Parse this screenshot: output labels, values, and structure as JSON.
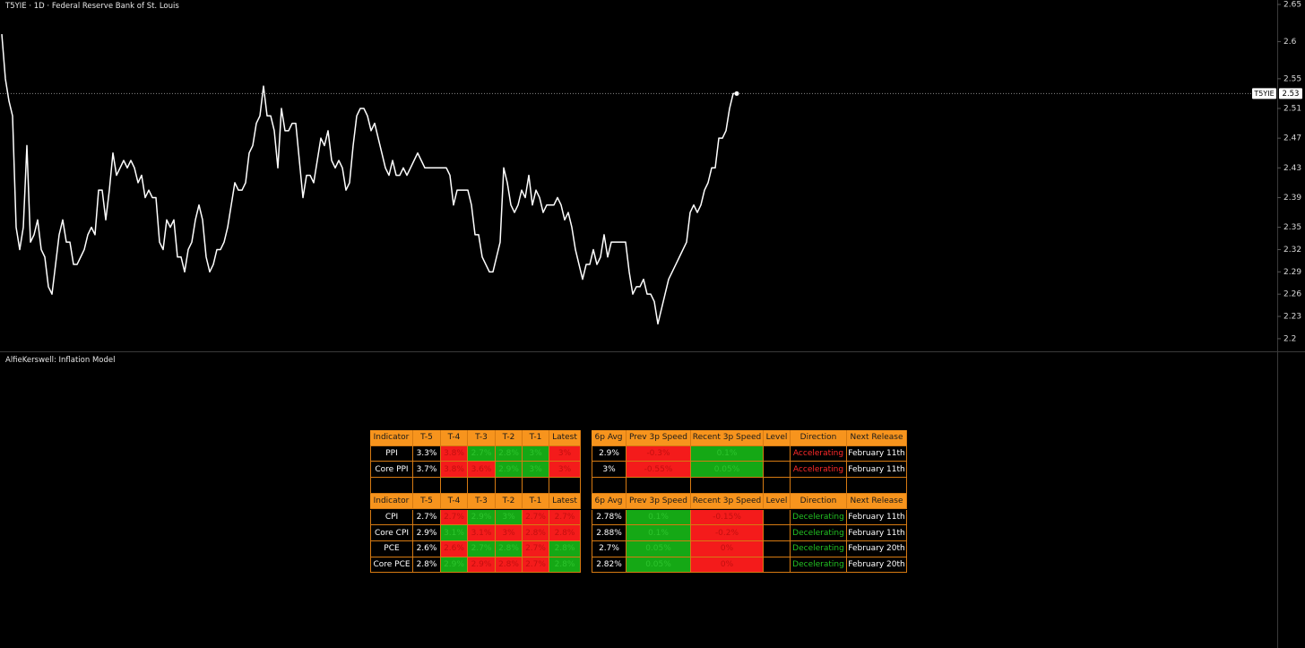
{
  "chart_data": {
    "type": "line",
    "title": "T5YIE · 1D · Federal Reserve Bank of St. Louis",
    "series": [
      {
        "name": "T5YIE",
        "color": "#ffffff",
        "values": [
          2.61,
          2.55,
          2.52,
          2.5,
          2.35,
          2.32,
          2.35,
          2.46,
          2.33,
          2.34,
          2.36,
          2.32,
          2.31,
          2.27,
          2.26,
          2.3,
          2.34,
          2.36,
          2.33,
          2.33,
          2.3,
          2.3,
          2.31,
          2.32,
          2.34,
          2.35,
          2.34,
          2.4,
          2.4,
          2.36,
          2.4,
          2.45,
          2.42,
          2.43,
          2.44,
          2.43,
          2.44,
          2.43,
          2.41,
          2.42,
          2.39,
          2.4,
          2.39,
          2.39,
          2.33,
          2.32,
          2.36,
          2.35,
          2.36,
          2.31,
          2.31,
          2.29,
          2.32,
          2.33,
          2.36,
          2.38,
          2.36,
          2.31,
          2.29,
          2.3,
          2.32,
          2.32,
          2.33,
          2.35,
          2.38,
          2.41,
          2.4,
          2.4,
          2.41,
          2.45,
          2.46,
          2.49,
          2.5,
          2.54,
          2.5,
          2.5,
          2.48,
          2.43,
          2.51,
          2.48,
          2.48,
          2.49,
          2.49,
          2.44,
          2.39,
          2.42,
          2.42,
          2.41,
          2.44,
          2.47,
          2.46,
          2.48,
          2.44,
          2.43,
          2.44,
          2.43,
          2.4,
          2.41,
          2.46,
          2.5,
          2.51,
          2.51,
          2.5,
          2.48,
          2.49,
          2.47,
          2.45,
          2.43,
          2.42,
          2.44,
          2.42,
          2.42,
          2.43,
          2.42,
          2.43,
          2.44,
          2.45,
          2.44,
          2.43,
          2.43,
          2.43,
          2.43,
          2.43,
          2.43,
          2.43,
          2.42,
          2.38,
          2.4,
          2.4,
          2.4,
          2.4,
          2.38,
          2.34,
          2.34,
          2.31,
          2.3,
          2.29,
          2.29,
          2.31,
          2.33,
          2.43,
          2.41,
          2.38,
          2.37,
          2.38,
          2.4,
          2.39,
          2.42,
          2.38,
          2.4,
          2.39,
          2.37,
          2.38,
          2.38,
          2.38,
          2.39,
          2.38,
          2.36,
          2.37,
          2.35,
          2.32,
          2.3,
          2.28,
          2.3,
          2.3,
          2.32,
          2.3,
          2.31,
          2.34,
          2.31,
          2.33,
          2.33,
          2.33,
          2.33,
          2.33,
          2.29,
          2.26,
          2.27,
          2.27,
          2.28,
          2.26,
          2.26,
          2.25,
          2.22,
          2.24,
          2.26,
          2.28,
          2.29,
          2.3,
          2.31,
          2.32,
          2.33,
          2.37,
          2.38,
          2.37,
          2.38,
          2.4,
          2.41,
          2.43,
          2.43,
          2.47,
          2.47,
          2.48,
          2.51,
          2.53,
          2.53
        ]
      }
    ],
    "ylim": [
      2.183,
      2.656
    ],
    "yticks": [
      2.65,
      2.6,
      2.55,
      2.51,
      2.47,
      2.43,
      2.39,
      2.35,
      2.32,
      2.29,
      2.26,
      2.23,
      2.2
    ]
  },
  "indicator": {
    "title": "AlfieKerswell: Inflation Model",
    "tables": [
      {
        "header": [
          "Indicator",
          "T-5",
          "T-4",
          "T-3",
          "T-2",
          "T-1",
          "Latest",
          "6p Avg",
          "Prev 3p Speed",
          "Recent 3p Speed",
          "Level",
          "Direction",
          "Next Release"
        ],
        "rows": [
          {
            "cells": [
              "PPI",
              "3.3%",
              "3.8%",
              "2.7%",
              "2.8%",
              "3%",
              "3%",
              "2.9%",
              "-0.3%",
              "0.1%",
              null,
              "Accelerating",
              "February 11th"
            ],
            "fills": [
              null,
              null,
              "red",
              "green",
              "green",
              "green",
              "red",
              null,
              "red",
              "green",
              null,
              null,
              null
            ],
            "direction_color": "red"
          },
          {
            "cells": [
              "Core PPI",
              "3.7%",
              "3.8%",
              "3.6%",
              "2.9%",
              "3%",
              "3%",
              "3%",
              "-0.55%",
              "0.05%",
              null,
              "Accelerating",
              "February 11th"
            ],
            "fills": [
              null,
              null,
              "red",
              "red",
              "green",
              "green",
              "red",
              null,
              "red",
              "green",
              null,
              null,
              null
            ],
            "direction_color": "red"
          }
        ]
      },
      {
        "header": [
          "Indicator",
          "T-5",
          "T-4",
          "T-3",
          "T-2",
          "T-1",
          "Latest",
          "6p Avg",
          "Prev 3p Speed",
          "Recent 3p Speed",
          "Level",
          "Direction",
          "Next Release"
        ],
        "rows": [
          {
            "cells": [
              "CPI",
              "2.7%",
              "2.7%",
              "2.9%",
              "3%",
              "2.7%",
              "2.7%",
              "2.78%",
              "0.1%",
              "-0.15%",
              null,
              "Decelerating",
              "February 11th"
            ],
            "fills": [
              null,
              null,
              "red",
              "green",
              "green",
              "red",
              "red",
              null,
              "green",
              "red",
              null,
              null,
              null
            ],
            "direction_color": "green"
          },
          {
            "cells": [
              "Core CPI",
              "2.9%",
              "3.1%",
              "3.1%",
              "3%",
              "2.8%",
              "2.8%",
              "2.88%",
              "0.1%",
              "-0.2%",
              null,
              "Decelerating",
              "February 11th"
            ],
            "fills": [
              null,
              null,
              "green",
              "red",
              "red",
              "red",
              "red",
              null,
              "green",
              "red",
              null,
              null,
              null
            ],
            "direction_color": "green"
          },
          {
            "cells": [
              "PCE",
              "2.6%",
              "2.6%",
              "2.7%",
              "2.8%",
              "2.7%",
              "2.8%",
              "2.7%",
              "0.05%",
              "0%",
              null,
              "Decelerating",
              "February 20th"
            ],
            "fills": [
              null,
              null,
              "red",
              "green",
              "green",
              "red",
              "green",
              null,
              "green",
              "red",
              null,
              null,
              null
            ],
            "direction_color": "green"
          },
          {
            "cells": [
              "Core PCE",
              "2.8%",
              "2.9%",
              "2.9%",
              "2.8%",
              "2.7%",
              "2.8%",
              "2.82%",
              "0.05%",
              "0%",
              null,
              "Decelerating",
              "February 20th"
            ],
            "fills": [
              null,
              null,
              "green",
              "red",
              "red",
              "red",
              "green",
              null,
              "green",
              "red",
              null,
              null,
              null
            ],
            "direction_color": "green"
          }
        ]
      }
    ]
  }
}
